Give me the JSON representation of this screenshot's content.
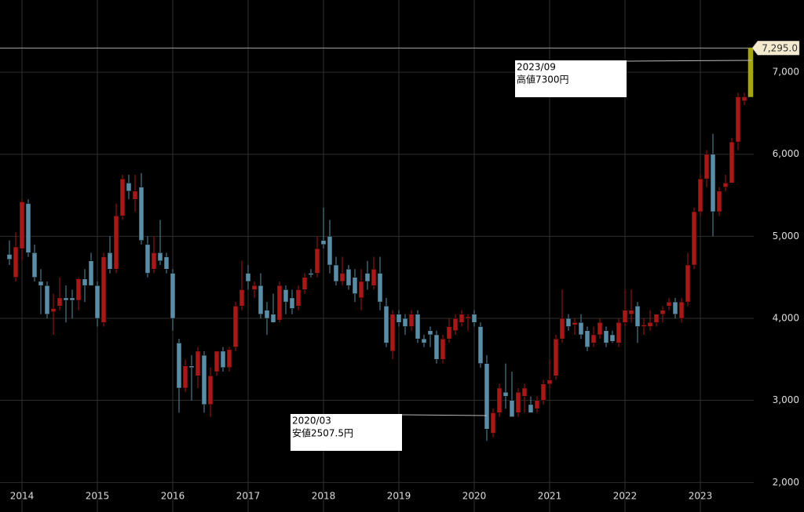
{
  "chart_data": {
    "type": "candlestick",
    "categories": [
      null,
      null,
      "2014",
      null,
      null,
      null,
      null,
      null,
      null,
      null,
      null,
      null,
      null,
      null,
      "2015",
      null,
      null,
      null,
      null,
      null,
      null,
      null,
      null,
      null,
      null,
      null,
      "2016",
      null,
      null,
      null,
      null,
      null,
      null,
      null,
      null,
      null,
      null,
      null,
      "2017",
      null,
      null,
      null,
      null,
      null,
      null,
      null,
      null,
      null,
      null,
      null,
      "2018",
      null,
      null,
      null,
      null,
      null,
      null,
      null,
      null,
      null,
      null,
      null,
      "2019",
      null,
      null,
      null,
      null,
      null,
      null,
      null,
      null,
      null,
      null,
      null,
      "2020",
      null,
      null,
      null,
      null,
      null,
      null,
      null,
      null,
      null,
      null,
      null,
      "2021",
      null,
      null,
      null,
      null,
      null,
      null,
      null,
      null,
      null,
      null,
      null,
      "2022",
      null,
      null,
      null,
      null,
      null,
      null,
      null,
      null,
      null,
      null,
      null,
      "2023",
      null,
      null,
      null,
      null,
      null,
      null,
      null,
      null
    ],
    "ohlc": [
      [
        4780,
        4950,
        4650,
        4720
      ],
      [
        4500,
        5050,
        4450,
        4870
      ],
      [
        4850,
        5450,
        4700,
        5420
      ],
      [
        5400,
        5450,
        4750,
        4800
      ],
      [
        4800,
        4900,
        4450,
        4500
      ],
      [
        4450,
        4600,
        4050,
        4400
      ],
      [
        4400,
        4450,
        4000,
        4050
      ],
      [
        4080,
        4300,
        3800,
        4120
      ],
      [
        4150,
        4500,
        4100,
        4250
      ],
      [
        4250,
        4400,
        3950,
        4220
      ],
      [
        4250,
        4350,
        4000,
        4220
      ],
      [
        4220,
        4500,
        4100,
        4480
      ],
      [
        4480,
        4600,
        4200,
        4400
      ],
      [
        4700,
        4800,
        4400,
        4400
      ],
      [
        4400,
        4450,
        3900,
        4000
      ],
      [
        3950,
        4800,
        3900,
        4750
      ],
      [
        4800,
        5000,
        4550,
        4600
      ],
      [
        4600,
        5400,
        4550,
        5250
      ],
      [
        5250,
        5750,
        5200,
        5700
      ],
      [
        5650,
        5750,
        5450,
        5550
      ],
      [
        5450,
        5750,
        5300,
        5550
      ],
      [
        5600,
        5770,
        4900,
        4950
      ],
      [
        4900,
        5000,
        4500,
        4550
      ],
      [
        4600,
        5000,
        4550,
        4800
      ],
      [
        4800,
        5200,
        4650,
        4700
      ],
      [
        4750,
        4800,
        4550,
        4600
      ],
      [
        4550,
        4600,
        3850,
        4000
      ],
      [
        3700,
        3750,
        2850,
        3150
      ],
      [
        3150,
        3500,
        3100,
        3420
      ],
      [
        3420,
        3550,
        3000,
        3400
      ],
      [
        3300,
        3650,
        3150,
        3600
      ],
      [
        3550,
        3600,
        2850,
        2950
      ],
      [
        2950,
        3400,
        2800,
        3300
      ],
      [
        3350,
        3600,
        3300,
        3600
      ],
      [
        3600,
        3650,
        3350,
        3400
      ],
      [
        3400,
        3650,
        3350,
        3620
      ],
      [
        3650,
        4200,
        3600,
        4150
      ],
      [
        4150,
        4700,
        4100,
        4350
      ],
      [
        4550,
        4650,
        4350,
        4450
      ],
      [
        4350,
        4450,
        4250,
        4400
      ],
      [
        4400,
        4550,
        4000,
        4050
      ],
      [
        4100,
        4200,
        3800,
        4000
      ],
      [
        4050,
        4300,
        3950,
        3950
      ],
      [
        3980,
        4450,
        3950,
        4400
      ],
      [
        4350,
        4400,
        4050,
        4200
      ],
      [
        4250,
        4350,
        4050,
        4120
      ],
      [
        4150,
        4400,
        4100,
        4350
      ],
      [
        4350,
        4550,
        4300,
        4500
      ],
      [
        4550,
        4600,
        4500,
        4530
      ],
      [
        4550,
        5000,
        4500,
        4850
      ],
      [
        4950,
        5350,
        4850,
        4900
      ],
      [
        5000,
        5200,
        4550,
        4650
      ],
      [
        4650,
        4750,
        4400,
        4450
      ],
      [
        4450,
        4750,
        4400,
        4550
      ],
      [
        4600,
        4650,
        4350,
        4400
      ],
      [
        4500,
        4600,
        4200,
        4300
      ],
      [
        4250,
        4600,
        4100,
        4450
      ],
      [
        4550,
        4700,
        4350,
        4450
      ],
      [
        4400,
        4750,
        4350,
        4600
      ],
      [
        4550,
        4750,
        4100,
        4200
      ],
      [
        4150,
        4250,
        3650,
        3700
      ],
      [
        3600,
        4100,
        3500,
        4050
      ],
      [
        4050,
        4100,
        3900,
        3950
      ],
      [
        4000,
        4050,
        3800,
        3900
      ],
      [
        3900,
        4100,
        3850,
        4050
      ],
      [
        4050,
        4100,
        3700,
        3750
      ],
      [
        3750,
        3800,
        3650,
        3700
      ],
      [
        3850,
        3900,
        3650,
        3800
      ],
      [
        3800,
        3850,
        3450,
        3500
      ],
      [
        3500,
        3800,
        3450,
        3750
      ],
      [
        3750,
        4000,
        3700,
        3900
      ],
      [
        3850,
        4050,
        3800,
        4000
      ],
      [
        3950,
        4100,
        3900,
        4050
      ],
      [
        4000,
        4050,
        3850,
        4020
      ],
      [
        4050,
        4100,
        3900,
        3950
      ],
      [
        3900,
        3950,
        3400,
        3450
      ],
      [
        3450,
        3550,
        2507.5,
        2650
      ],
      [
        2600,
        2900,
        2550,
        2850
      ],
      [
        2850,
        3200,
        2800,
        3150
      ],
      [
        3100,
        3450,
        2900,
        3050
      ],
      [
        3000,
        3350,
        2800,
        2800
      ],
      [
        2850,
        3150,
        2800,
        3100
      ],
      [
        3050,
        3200,
        2850,
        3150
      ],
      [
        2950,
        3050,
        2850,
        2850
      ],
      [
        2900,
        3050,
        2850,
        3000
      ],
      [
        3000,
        3250,
        2950,
        3200
      ],
      [
        3200,
        3500,
        3150,
        3250
      ],
      [
        3300,
        3800,
        3250,
        3750
      ],
      [
        3750,
        4350,
        3700,
        4000
      ],
      [
        4000,
        4050,
        3850,
        3900
      ],
      [
        3920,
        4000,
        3800,
        3950
      ],
      [
        3950,
        4050,
        3750,
        3800
      ],
      [
        3850,
        3900,
        3600,
        3650
      ],
      [
        3700,
        3900,
        3650,
        3800
      ],
      [
        3800,
        4000,
        3750,
        3950
      ],
      [
        3850,
        3900,
        3650,
        3700
      ],
      [
        3800,
        3850,
        3700,
        3720
      ],
      [
        3700,
        4000,
        3650,
        3950
      ],
      [
        3950,
        4350,
        3900,
        4100
      ],
      [
        4050,
        4350,
        3950,
        4100
      ],
      [
        4150,
        4200,
        3700,
        3900
      ],
      [
        3900,
        4000,
        3800,
        3920
      ],
      [
        3900,
        4100,
        3850,
        3950
      ],
      [
        3950,
        4050,
        3900,
        4050
      ],
      [
        4050,
        4150,
        3950,
        4100
      ],
      [
        4150,
        4250,
        4100,
        4200
      ],
      [
        4200,
        4250,
        4000,
        4050
      ],
      [
        4000,
        4250,
        3950,
        4200
      ],
      [
        4200,
        4800,
        4150,
        4650
      ],
      [
        4650,
        5350,
        4600,
        5300
      ],
      [
        5300,
        5750,
        5250,
        5700
      ],
      [
        5700,
        6050,
        5600,
        6000
      ],
      [
        6000,
        6250,
        5000,
        5300
      ],
      [
        5300,
        5600,
        5250,
        5550
      ],
      [
        5600,
        5750,
        5550,
        5650
      ],
      [
        5650,
        6200,
        5650,
        6150
      ],
      [
        6150,
        6750,
        6050,
        6700
      ],
      [
        6650,
        6750,
        6600,
        6700
      ],
      [
        6700,
        7300,
        6700,
        7295
      ]
    ],
    "up_color": "#a81818",
    "down_color": "#5a8ea6",
    "last_color": "#a6a612",
    "ylim": [
      1640,
      7880
    ],
    "yticks": [
      {
        "value": 2000,
        "label": "2,000"
      },
      {
        "value": 3000,
        "label": "3,000"
      },
      {
        "value": 4000,
        "label": "4,000"
      },
      {
        "value": 5000,
        "label": "5,000"
      },
      {
        "value": 6000,
        "label": "6,000"
      },
      {
        "value": 7000,
        "label": "7,000"
      }
    ],
    "grid": true,
    "last_price": {
      "value": 7295,
      "label": "7,295.0"
    },
    "annotations": [
      {
        "date": "2023/09",
        "text": "高値7300円"
      },
      {
        "date": "2020/03",
        "text": "安値2507.5円"
      }
    ]
  }
}
